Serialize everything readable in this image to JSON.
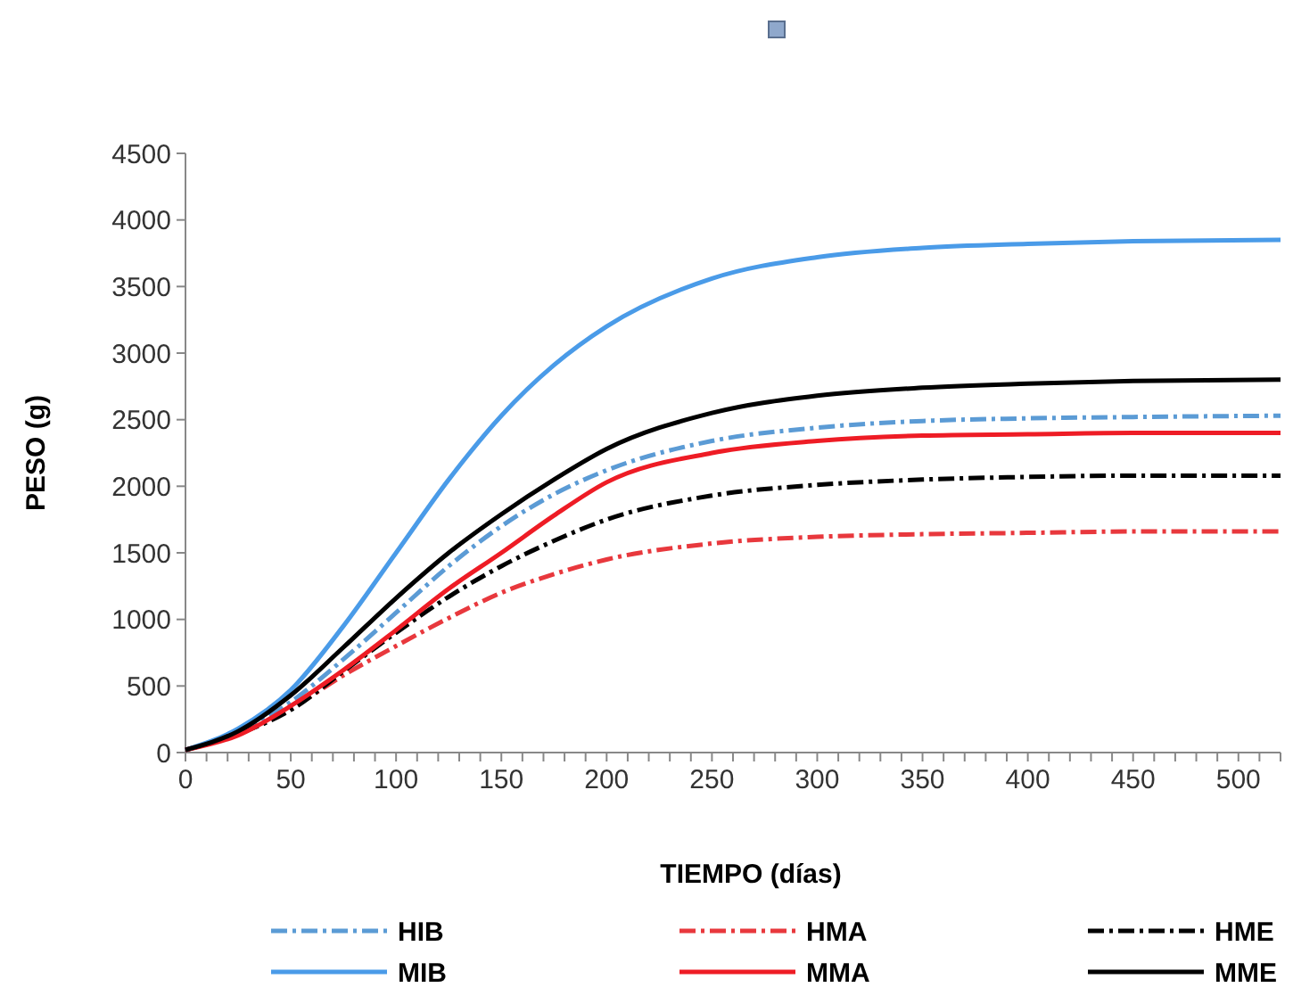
{
  "chart_data": {
    "type": "line",
    "xlabel": "TIEMPO (días)",
    "ylabel": "PESO (g)",
    "x": [
      0,
      25,
      50,
      75,
      100,
      125,
      150,
      175,
      200,
      250,
      300,
      350,
      400,
      450,
      520
    ],
    "xlim": [
      0,
      520
    ],
    "xticks": [
      0,
      {
        "value": 10,
        "label": null
      },
      {
        "value": 20,
        "label": null
      },
      {
        "value": 30,
        "label": null
      },
      {
        "value": 40,
        "label": null
      },
      50,
      {
        "value": 60,
        "label": null
      },
      {
        "value": 70,
        "label": null
      },
      {
        "value": 80,
        "label": null
      },
      {
        "value": 90,
        "label": null
      },
      100,
      {
        "value": 110,
        "label": null
      },
      {
        "value": 120,
        "label": null
      },
      {
        "value": 130,
        "label": null
      },
      {
        "value": 140,
        "label": null
      },
      150,
      {
        "value": 160,
        "label": null
      },
      {
        "value": 170,
        "label": null
      },
      {
        "value": 180,
        "label": null
      },
      {
        "value": 190,
        "label": null
      },
      200,
      {
        "value": 210,
        "label": null
      },
      {
        "value": 220,
        "label": null
      },
      {
        "value": 230,
        "label": null
      },
      {
        "value": 240,
        "label": null
      },
      250,
      {
        "value": 260,
        "label": null
      },
      {
        "value": 270,
        "label": null
      },
      {
        "value": 280,
        "label": null
      },
      {
        "value": 290,
        "label": null
      },
      300,
      {
        "value": 310,
        "label": null
      },
      {
        "value": 320,
        "label": null
      },
      {
        "value": 330,
        "label": null
      },
      {
        "value": 340,
        "label": null
      },
      350,
      {
        "value": 360,
        "label": null
      },
      {
        "value": 370,
        "label": null
      },
      {
        "value": 380,
        "label": null
      },
      {
        "value": 390,
        "label": null
      },
      400,
      {
        "value": 410,
        "label": null
      },
      {
        "value": 420,
        "label": null
      },
      {
        "value": 430,
        "label": null
      },
      {
        "value": 440,
        "label": null
      },
      450,
      {
        "value": 460,
        "label": null
      },
      {
        "value": 470,
        "label": null
      },
      {
        "value": 480,
        "label": null
      },
      {
        "value": 490,
        "label": null
      },
      500,
      {
        "value": 510,
        "label": null
      },
      {
        "value": 520,
        "label": null
      }
    ],
    "ylim": [
      0,
      4500
    ],
    "yticks": [
      0,
      500,
      1000,
      1500,
      2000,
      2500,
      3000,
      3500,
      4000,
      4500
    ],
    "grid": false,
    "legend": "bottom",
    "series": [
      {
        "name": "HIB",
        "color": "#5b9bd5",
        "line_style": "dashed",
        "values": [
          20,
          150,
          380,
          700,
          1050,
          1400,
          1700,
          1940,
          2120,
          2340,
          2440,
          2490,
          2510,
          2520,
          2530
        ]
      },
      {
        "name": "HMA",
        "color": "#e8383d",
        "line_style": "dashed",
        "values": [
          20,
          140,
          330,
          580,
          800,
          1010,
          1200,
          1340,
          1450,
          1570,
          1620,
          1640,
          1650,
          1660,
          1660
        ]
      },
      {
        "name": "HME",
        "color": "#000000",
        "line_style": "dashed",
        "values": [
          20,
          140,
          320,
          610,
          900,
          1170,
          1400,
          1590,
          1750,
          1930,
          2010,
          2050,
          2070,
          2080,
          2080
        ]
      },
      {
        "name": "MIB",
        "color": "#4a9be8",
        "line_style": "solid",
        "values": [
          20,
          180,
          470,
          950,
          1500,
          2050,
          2530,
          2910,
          3200,
          3560,
          3720,
          3790,
          3820,
          3840,
          3850
        ]
      },
      {
        "name": "MMA",
        "color": "#ee1c25",
        "line_style": "solid",
        "values": [
          20,
          130,
          350,
          620,
          920,
          1230,
          1500,
          1780,
          2030,
          2250,
          2340,
          2380,
          2390,
          2400,
          2400
        ]
      },
      {
        "name": "MME",
        "color": "#000000",
        "line_style": "solid",
        "values": [
          20,
          160,
          430,
          790,
          1160,
          1500,
          1790,
          2050,
          2280,
          2550,
          2680,
          2740,
          2770,
          2790,
          2800
        ]
      }
    ]
  }
}
